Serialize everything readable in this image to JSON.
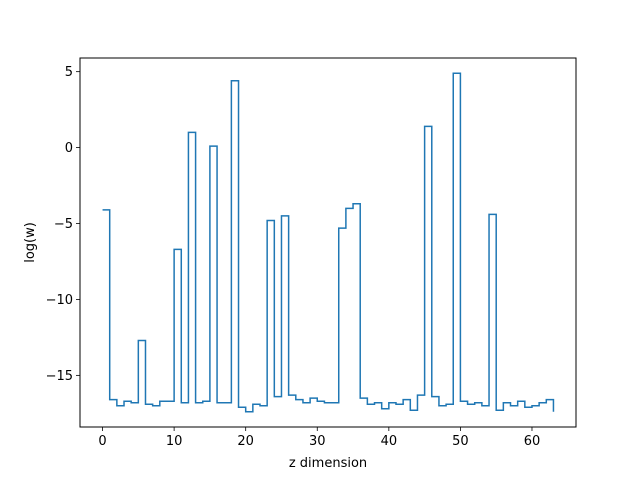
{
  "chart_data": {
    "type": "line",
    "drawstyle": "steps-post",
    "title": "",
    "xlabel": "z dimension",
    "ylabel": "log(w)",
    "xlim": [
      -3.15,
      66.15
    ],
    "ylim": [
      -18.4,
      5.9
    ],
    "xticks": [
      0,
      10,
      20,
      30,
      40,
      50,
      60
    ],
    "yticks": [
      -15,
      -10,
      -5,
      0,
      5
    ],
    "ytick_labels": [
      "−15",
      "−10",
      "−5",
      "0",
      "5"
    ],
    "grid": false,
    "legend": "none",
    "line_color": "#1f77b4",
    "series": [
      {
        "x": [
          0,
          1,
          2,
          3,
          4,
          5,
          6,
          7,
          8,
          9,
          10,
          11,
          12,
          13,
          14,
          15,
          16,
          17,
          18,
          19,
          20,
          21,
          22,
          23,
          24,
          25,
          26,
          27,
          28,
          29,
          30,
          31,
          32,
          33,
          34,
          35,
          36,
          37,
          38,
          39,
          40,
          41,
          42,
          43,
          44,
          45,
          46,
          47,
          48,
          49,
          50,
          51,
          52,
          53,
          54,
          55,
          56,
          57,
          58,
          59,
          60,
          61,
          62,
          63
        ],
        "values": [
          -4.1,
          -16.6,
          -17,
          -16.7,
          -16.8,
          -12.7,
          -16.9,
          -17,
          -16.7,
          -16.7,
          -6.7,
          -16.8,
          1,
          -16.8,
          -16.7,
          0.1,
          -16.8,
          -16.8,
          4.4,
          -17.1,
          -17.4,
          -16.9,
          -17,
          -4.8,
          -16.4,
          -4.5,
          -16.3,
          -16.6,
          -16.8,
          -16.5,
          -16.7,
          -16.8,
          -16.8,
          -5.3,
          -4,
          -3.7,
          -16.5,
          -16.9,
          -16.8,
          -17.2,
          -16.8,
          -16.9,
          -16.6,
          -17.3,
          -16.3,
          1.4,
          -16.4,
          -17,
          -16.9,
          4.9,
          -16.7,
          -16.9,
          -16.8,
          -17,
          -4.4,
          -17.3,
          -16.8,
          -17,
          -16.7,
          -17.1,
          -17,
          -16.8,
          -16.6,
          -17.4
        ]
      }
    ]
  }
}
